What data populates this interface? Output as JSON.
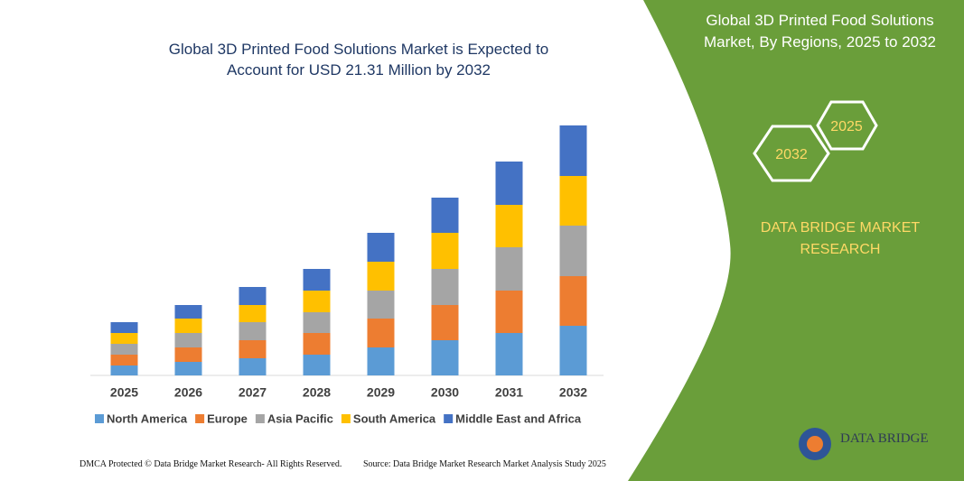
{
  "chart_data": {
    "type": "bar",
    "stacked": true,
    "title": "Global 3D Printed Food Solutions Market is Expected to Account for USD 21.31 Million by 2032",
    "categories": [
      "2025",
      "2026",
      "2027",
      "2028",
      "2029",
      "2030",
      "2031",
      "2032"
    ],
    "series": [
      {
        "name": "North America",
        "color": "#5b9bd5",
        "values": [
          11,
          15,
          19,
          23,
          31,
          39,
          47,
          55
        ]
      },
      {
        "name": "Europe",
        "color": "#ed7d31",
        "values": [
          12,
          16,
          20,
          24,
          32,
          39,
          47,
          55
        ]
      },
      {
        "name": "Asia Pacific",
        "color": "#a5a5a5",
        "values": [
          12,
          16,
          20,
          23,
          31,
          40,
          48,
          56
        ]
      },
      {
        "name": "South America",
        "color": "#ffc000",
        "values": [
          12,
          16,
          19,
          24,
          32,
          40,
          47,
          55
        ]
      },
      {
        "name": "Middle East and Africa",
        "color": "#4472c4",
        "values": [
          12,
          15,
          20,
          24,
          32,
          39,
          48,
          56
        ]
      }
    ],
    "legend": "bottom"
  },
  "panel": {
    "title": "Global 3D Printed Food Solutions Market, By Regions, 2025 to 2032",
    "hexagons": [
      "2025",
      "2032"
    ],
    "brand": "DATA BRIDGE MARKET RESEARCH",
    "logo": "DATA BRIDGE"
  },
  "footer": {
    "left": "DMCA Protected © Data Bridge Market Research- All Rights Reserved.",
    "right": "Source: Data Bridge Market Research Market Analysis Study 2025"
  }
}
